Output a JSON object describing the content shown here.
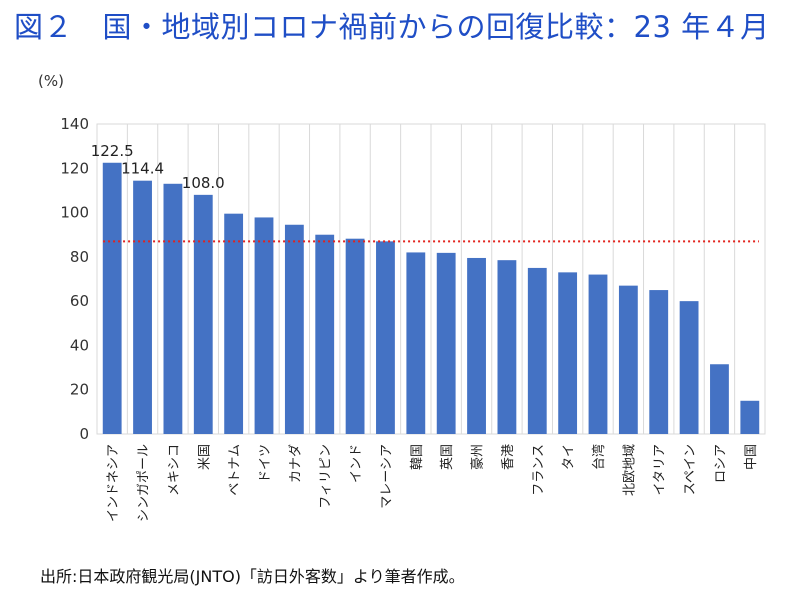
{
  "header": {
    "title": "図２　国・地域別コロナ禍前からの回復比較：23 年４月"
  },
  "footer": {
    "source": "出所:日本政府観光局(JNTO)「訪日外客数」より筆者作成。"
  },
  "chart_data": {
    "type": "bar",
    "unit_label": "(%)",
    "categories": [
      "インドネシア",
      "シンガポール",
      "メキシコ",
      "米国",
      "ベトナム",
      "ドイツ",
      "カナダ",
      "フィリピン",
      "インド",
      "マレーシア",
      "韓国",
      "英国",
      "豪州",
      "香港",
      "フランス",
      "タイ",
      "台湾",
      "北欧地域",
      "イタリア",
      "スペイン",
      "ロシア",
      "中国"
    ],
    "values": [
      122.5,
      114.4,
      113.0,
      108.0,
      99.5,
      97.8,
      94.5,
      90.0,
      88.2,
      87.0,
      82.0,
      81.8,
      79.5,
      78.5,
      75.0,
      73.0,
      72.0,
      67.0,
      65.0,
      60.0,
      31.5,
      15.0
    ],
    "data_labels": {
      "0": "122.5",
      "1": "114.4",
      "3": "108.0"
    },
    "reference_line": 87.0,
    "ylim": [
      0,
      140
    ],
    "yticks": [
      0,
      20,
      40,
      60,
      80,
      100,
      120,
      140
    ],
    "grid": "vertical",
    "colors": {
      "bar": "#4472c4",
      "reference": "#e3231c",
      "grid": "#d9d9d9",
      "title": "#1f4ec6"
    }
  }
}
